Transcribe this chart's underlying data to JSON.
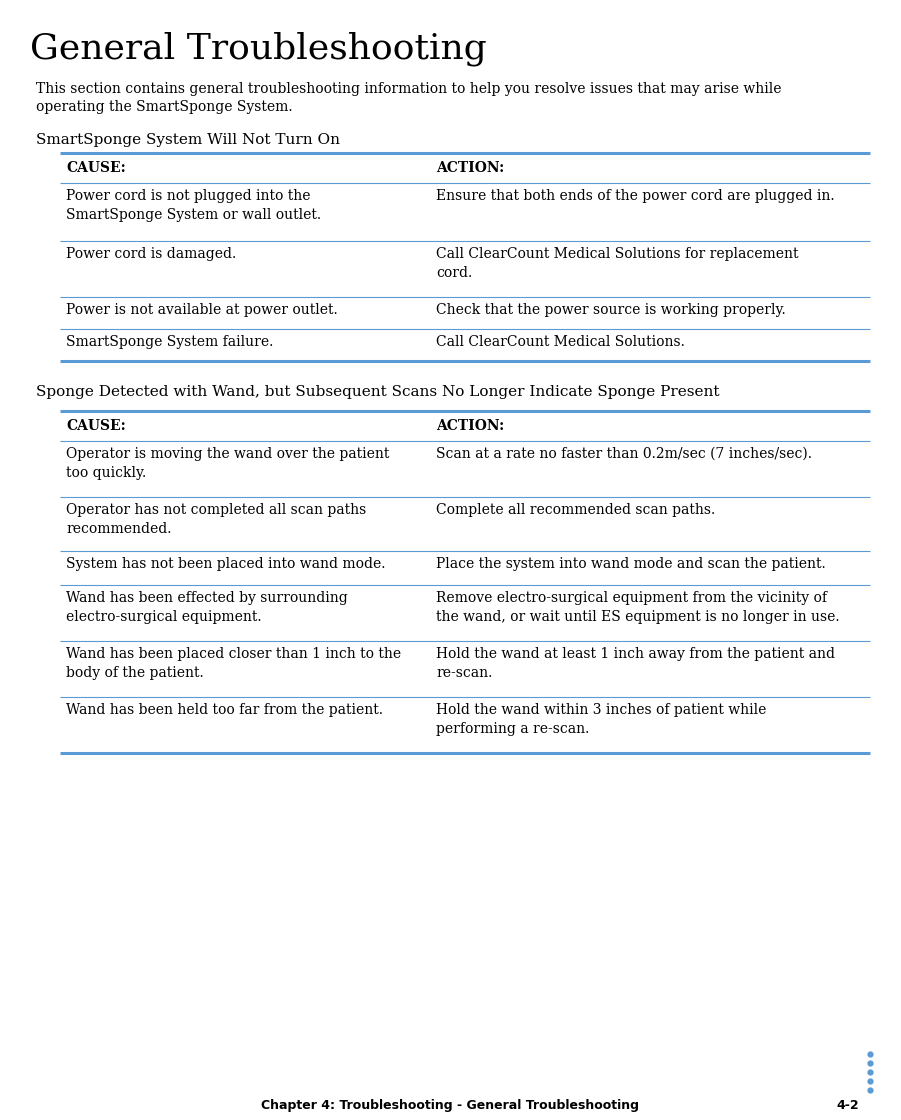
{
  "title": "General Troubleshooting",
  "intro_line1": "This section contains general troubleshooting information to help you resolve issues that may arise while",
  "intro_line2": "operating the SmartSponge System.",
  "section1_heading": "SmartSponge System Will Not Turn On",
  "section2_heading": "Sponge Detected with Wand, but Subsequent Scans No Longer Indicate Sponge Present",
  "col_header_cause": "CAUSE:",
  "col_header_action": "ACTION:",
  "table1_rows": [
    [
      "Power cord is not plugged into the\nSmartSponge System or wall outlet.",
      "Ensure that both ends of the power cord are plugged in."
    ],
    [
      "Power cord is damaged.",
      "Call ClearCount Medical Solutions for replacement\ncord."
    ],
    [
      "Power is not available at power outlet.",
      "Check that the power source is working properly."
    ],
    [
      "SmartSponge System failure.",
      "Call ClearCount Medical Solutions."
    ]
  ],
  "table2_rows": [
    [
      "Operator is moving the wand over the patient\ntoo quickly.",
      "Scan at a rate no faster than 0.2m/sec (7 inches/sec)."
    ],
    [
      "Operator has not completed all scan paths\nrecommended.",
      "Complete all recommended scan paths."
    ],
    [
      "System has not been placed into wand mode.",
      "Place the system into wand mode and scan the patient."
    ],
    [
      "Wand has been effected by surrounding\nelectro-surgical equipment.",
      "Remove electro-surgical equipment from the vicinity of\nthe wand, or wait until ES equipment is no longer in use."
    ],
    [
      "Wand has been placed closer than 1 inch to the\nbody of the patient.",
      "Hold the wand at least 1 inch away from the patient and\nre-scan."
    ],
    [
      "Wand has been held too far from the patient.",
      "Hold the wand within 3 inches of patient while\nperforming a re-scan."
    ]
  ],
  "footer_text": "Chapter 4: Troubleshooting - General Troubleshooting",
  "footer_page": "4-2",
  "bg_color": "#ffffff",
  "text_color": "#000000",
  "table_line_color": "#5b9bd5",
  "dot_color": "#5b9bd5",
  "title_fontsize": 26,
  "section_fontsize": 11,
  "body_fontsize": 10,
  "bold_fontsize": 10,
  "footer_fontsize": 9
}
